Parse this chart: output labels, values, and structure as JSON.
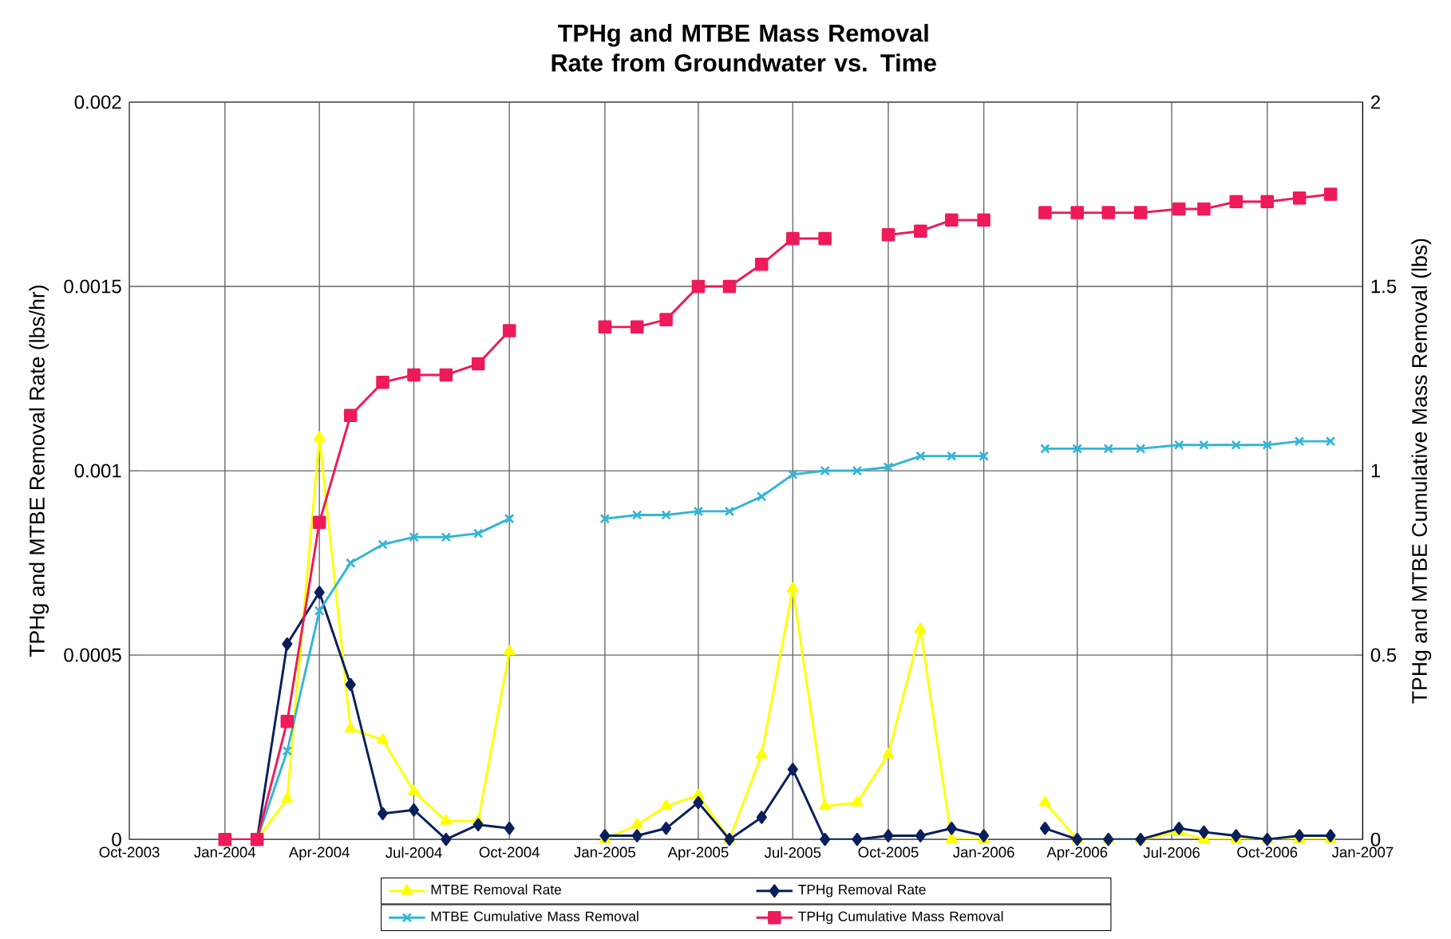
{
  "chart_data": {
    "type": "line",
    "title": "TPHg and MTBE Mass Removal Rate from Groundwater vs. Time",
    "ylabel": "TPHg and MTBE Removal Rate (lbs/hr)",
    "y2label": "TPHg and MTBE Cumulative Mass Removal (lbs)",
    "x": [
      "2004-01-01",
      "2004-02-01",
      "2004-03-01",
      "2004-04-01",
      "2004-05-01",
      "2004-06-01",
      "2004-07-01",
      "2004-08-01",
      "2004-09-01",
      "2004-10-01",
      "2004-11-01",
      "2004-12-01",
      "2005-01-01",
      "2005-02-01",
      "2005-03-01",
      "2005-04-01",
      "2005-05-01",
      "2005-06-01",
      "2005-07-01",
      "2005-08-01",
      "2005-09-01",
      "2005-10-01",
      "2005-11-01",
      "2005-12-01",
      "2006-01-01",
      "2006-02-01",
      "2006-03-01",
      "2006-04-01",
      "2006-05-01",
      "2006-06-01",
      "2006-07-08",
      "2006-08-01",
      "2006-09-01",
      "2006-10-01",
      "2006-11-01",
      "2006-12-01"
    ],
    "series": [
      {
        "name": "MTBE Removal Rate",
        "color": "#ffff00",
        "marker": "triangle",
        "values": [
          null,
          0,
          0.00011,
          0.00109,
          0.0003,
          0.00027,
          0.00013,
          5e-05,
          5e-05,
          0.00051,
          null,
          null,
          0,
          4e-05,
          9e-05,
          0.00012,
          0,
          0.00023,
          0.00068,
          9e-05,
          0.0001,
          0.00023,
          0.00057,
          0,
          0,
          null,
          0.0001,
          0,
          0,
          0,
          2e-05,
          0,
          0,
          0,
          0,
          0
        ]
      },
      {
        "name": "TPHg Removal Rate",
        "color": "#0a1f5c",
        "marker": "diamond",
        "values": [
          null,
          0,
          0.00053,
          0.00067,
          0.00042,
          7e-05,
          8e-05,
          0,
          4e-05,
          3e-05,
          null,
          null,
          1e-05,
          1e-05,
          3e-05,
          0.0001,
          0,
          6e-05,
          0.00019,
          0,
          0,
          1e-05,
          1e-05,
          3e-05,
          1e-05,
          null,
          3e-05,
          0,
          0,
          0,
          3e-05,
          2e-05,
          1e-05,
          0,
          1e-05,
          1e-05
        ]
      },
      {
        "name": "MTBE Cumulative Mass Removal",
        "color": "#33b5d6",
        "marker": "cross",
        "axis": "y2",
        "values": [
          null,
          0,
          0.24,
          0.62,
          0.75,
          0.8,
          0.82,
          0.82,
          0.83,
          0.87,
          null,
          null,
          0.87,
          0.88,
          0.88,
          0.89,
          0.89,
          0.93,
          0.99,
          1,
          1,
          1.01,
          1.04,
          1.04,
          1.04,
          null,
          1.06,
          1.06,
          1.06,
          1.06,
          1.07,
          1.07,
          1.07,
          1.07,
          1.08,
          1.08
        ]
      },
      {
        "name": "TPHg Cumulative Mass Removal",
        "color": "#ee1a5a",
        "marker": "square",
        "axis": "y2",
        "values": [
          0,
          0,
          0.32,
          0.86,
          1.15,
          1.24,
          1.26,
          1.26,
          1.29,
          1.38,
          null,
          null,
          1.39,
          1.39,
          1.41,
          1.5,
          1.5,
          1.56,
          1.63,
          1.63,
          null,
          1.64,
          1.65,
          1.68,
          1.68,
          null,
          1.7,
          1.7,
          1.7,
          1.7,
          1.71,
          1.71,
          1.73,
          1.73,
          1.74,
          1.75
        ]
      }
    ],
    "xlim": [
      "2003-10-01",
      "2007-01-01"
    ],
    "xticks": [
      {
        "value": "2003-10-01",
        "label": "Oct-2003"
      },
      {
        "value": "2004-01-01",
        "label": "Jan-2004"
      },
      {
        "value": "2004-04-01",
        "label": "Apr-2004"
      },
      {
        "value": "2004-07-01",
        "label": "Jul-2004"
      },
      {
        "value": "2004-10-01",
        "label": "Oct-2004"
      },
      {
        "value": "2005-01-01",
        "label": "Jan-2005"
      },
      {
        "value": "2005-04-01",
        "label": "Apr-2005"
      },
      {
        "value": "2005-07-01",
        "label": "Jul-2005"
      },
      {
        "value": "2005-10-01",
        "label": "Oct-2005"
      },
      {
        "value": "2006-01-01",
        "label": "Jan-2006"
      },
      {
        "value": "2006-04-01",
        "label": "Apr-2006"
      },
      {
        "value": "2006-07-01",
        "label": "Jul-2006"
      },
      {
        "value": "2006-10-01",
        "label": "Oct-2006"
      },
      {
        "value": "2007-01-01",
        "label": "Jan-2007"
      }
    ],
    "ylim": [
      0,
      0.002
    ],
    "yticks": [
      0,
      0.0005,
      0.001,
      0.0015,
      0.002
    ],
    "y2lim": [
      0,
      2
    ],
    "y2ticks": [
      0,
      0.5,
      1,
      1.5,
      2
    ],
    "grid": true,
    "legend": "bottom"
  }
}
